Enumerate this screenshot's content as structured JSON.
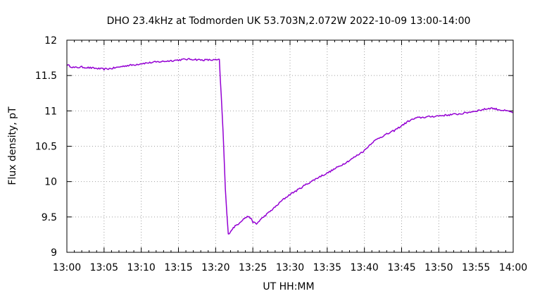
{
  "chart_data": {
    "type": "line",
    "title": "DHO 23.4kHz at Todmorden UK 53.703N,2.072W 2022-10-09 13:00-14:00",
    "xlabel": "UT HH:MM",
    "ylabel": "Flux density, pT",
    "x_ticks": [
      "13:00",
      "13:05",
      "13:10",
      "13:15",
      "13:20",
      "13:25",
      "13:30",
      "13:35",
      "13:40",
      "13:45",
      "13:50",
      "13:55",
      "14:00"
    ],
    "y_ticks": [
      "9",
      "9.5",
      "10",
      "10.5",
      "11",
      "11.5",
      "12"
    ],
    "xlim": [
      "13:00",
      "14:00"
    ],
    "ylim": [
      9,
      12
    ],
    "grid": true,
    "line_color": "#9400d3",
    "series": [
      {
        "name": "",
        "x": [
          "13:00",
          "13:01",
          "13:02",
          "13:03",
          "13:04",
          "13:05",
          "13:06",
          "13:07",
          "13:08",
          "13:09",
          "13:10",
          "13:11",
          "13:12",
          "13:13",
          "13:14",
          "13:15",
          "13:16",
          "13:17",
          "13:18",
          "13:19",
          "13:20",
          "13:20.5",
          "13:21",
          "13:21.3",
          "13:21.5",
          "13:21.7",
          "13:22",
          "13:22.5",
          "13:23",
          "13:23.5",
          "13:24",
          "13:24.5",
          "13:25",
          "13:25.5",
          "13:26",
          "13:27",
          "13:28",
          "13:29",
          "13:30",
          "13:31",
          "13:32",
          "13:33",
          "13:34",
          "13:35",
          "13:36",
          "13:37",
          "13:38",
          "13:39",
          "13:40",
          "13:41",
          "13:42",
          "13:43",
          "13:44",
          "13:45",
          "13:46",
          "13:47",
          "13:48",
          "13:49",
          "13:50",
          "13:51",
          "13:52",
          "13:53",
          "13:54",
          "13:55",
          "13:56",
          "13:57",
          "13:58",
          "13:59",
          "14:00"
        ],
        "y": [
          11.65,
          11.61,
          11.62,
          11.61,
          11.6,
          11.59,
          11.6,
          11.62,
          11.64,
          11.65,
          11.67,
          11.68,
          11.69,
          11.7,
          11.71,
          11.72,
          11.73,
          11.73,
          11.72,
          11.72,
          11.72,
          11.72,
          10.7,
          9.9,
          9.55,
          9.25,
          9.3,
          9.36,
          9.4,
          9.45,
          9.49,
          9.51,
          9.43,
          9.4,
          9.46,
          9.55,
          9.64,
          9.74,
          9.82,
          9.88,
          9.95,
          10.01,
          10.07,
          10.12,
          10.18,
          10.24,
          10.3,
          10.37,
          10.44,
          10.55,
          10.62,
          10.67,
          10.72,
          10.79,
          10.86,
          10.9,
          10.91,
          10.92,
          10.93,
          10.94,
          10.95,
          10.96,
          10.98,
          11.0,
          11.02,
          11.04,
          11.02,
          11.0,
          10.98
        ]
      }
    ]
  }
}
